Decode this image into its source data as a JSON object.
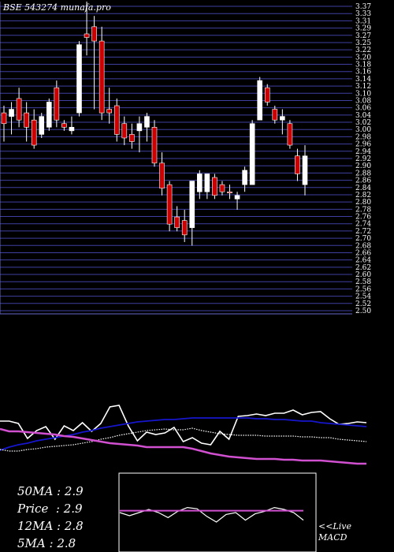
{
  "chart_data": [
    {
      "type": "candlestick",
      "title": "BSE 543274  munafa.pro",
      "y_tick_labels": [
        "3.37",
        "3.33",
        "3.31",
        "3.29",
        "3.27",
        "3.25",
        "3.22",
        "3.20",
        "3.18",
        "3.16",
        "3.14",
        "3.12",
        "3.10",
        "3.08",
        "3.06",
        "3.04",
        "3.02",
        "3.00",
        "2.98",
        "2.96",
        "2.94",
        "2.92",
        "2.90",
        "2.88",
        "2.86",
        "2.84",
        "2.82",
        "2.80",
        "2.78",
        "2.76",
        "2.74",
        "2.72",
        "2.70",
        "2.68",
        "2.66",
        "2.64",
        "2.62",
        "2.60",
        "2.58",
        "2.56",
        "2.54",
        "2.52",
        "2.50"
      ],
      "ylim": [
        2.5,
        3.37
      ],
      "grid": true,
      "candles": [
        {
          "o": 3.06,
          "h": 3.08,
          "l": 2.98,
          "c": 3.03,
          "dir": "down"
        },
        {
          "o": 3.05,
          "h": 3.09,
          "l": 3.0,
          "c": 3.07,
          "dir": "up"
        },
        {
          "o": 3.1,
          "h": 3.13,
          "l": 3.02,
          "c": 3.04,
          "dir": "down"
        },
        {
          "o": 3.06,
          "h": 3.09,
          "l": 2.98,
          "c": 3.02,
          "dir": "down"
        },
        {
          "o": 3.04,
          "h": 3.07,
          "l": 2.96,
          "c": 2.97,
          "dir": "down"
        },
        {
          "o": 3.0,
          "h": 3.06,
          "l": 2.99,
          "c": 3.05,
          "dir": "up"
        },
        {
          "o": 3.02,
          "h": 3.1,
          "l": 3.01,
          "c": 3.09,
          "dir": "up"
        },
        {
          "o": 3.13,
          "h": 3.15,
          "l": 3.02,
          "c": 3.04,
          "dir": "down"
        },
        {
          "o": 3.02,
          "h": 3.04,
          "l": 3.01,
          "c": 3.03,
          "dir": "down"
        },
        {
          "o": 3.01,
          "h": 3.05,
          "l": 3.0,
          "c": 3.02,
          "dir": "up"
        },
        {
          "o": 3.06,
          "h": 3.26,
          "l": 3.05,
          "c": 3.25,
          "dir": "up"
        },
        {
          "o": 3.27,
          "h": 3.37,
          "l": 3.22,
          "c": 3.28,
          "dir": "down"
        },
        {
          "o": 3.3,
          "h": 3.33,
          "l": 3.07,
          "c": 3.26,
          "dir": "down"
        },
        {
          "o": 3.26,
          "h": 3.3,
          "l": 3.04,
          "c": 3.06,
          "dir": "down"
        },
        {
          "o": 3.06,
          "h": 3.13,
          "l": 3.03,
          "c": 3.07,
          "dir": "down"
        },
        {
          "o": 3.08,
          "h": 3.1,
          "l": 2.98,
          "c": 3.0,
          "dir": "down"
        },
        {
          "o": 3.03,
          "h": 3.05,
          "l": 2.97,
          "c": 2.99,
          "dir": "down"
        },
        {
          "o": 3.0,
          "h": 3.03,
          "l": 2.96,
          "c": 2.98,
          "dir": "down"
        },
        {
          "o": 3.01,
          "h": 3.05,
          "l": 2.95,
          "c": 3.03,
          "dir": "up"
        },
        {
          "o": 3.02,
          "h": 3.06,
          "l": 2.98,
          "c": 3.05,
          "dir": "up"
        },
        {
          "o": 3.02,
          "h": 3.04,
          "l": 2.91,
          "c": 2.92,
          "dir": "down"
        },
        {
          "o": 2.92,
          "h": 2.95,
          "l": 2.83,
          "c": 2.85,
          "dir": "down"
        },
        {
          "o": 2.86,
          "h": 2.87,
          "l": 2.73,
          "c": 2.75,
          "dir": "down"
        },
        {
          "o": 2.77,
          "h": 2.8,
          "l": 2.73,
          "c": 2.74,
          "dir": "down"
        },
        {
          "o": 2.76,
          "h": 2.79,
          "l": 2.7,
          "c": 2.72,
          "dir": "down"
        },
        {
          "o": 2.74,
          "h": 2.87,
          "l": 2.69,
          "c": 2.87,
          "dir": "up"
        },
        {
          "o": 2.84,
          "h": 2.9,
          "l": 2.82,
          "c": 2.89,
          "dir": "up"
        },
        {
          "o": 2.84,
          "h": 2.89,
          "l": 2.82,
          "c": 2.89,
          "dir": "up"
        },
        {
          "o": 2.88,
          "h": 2.89,
          "l": 2.82,
          "c": 2.83,
          "dir": "down"
        },
        {
          "o": 2.86,
          "h": 2.87,
          "l": 2.83,
          "c": 2.84,
          "dir": "down"
        },
        {
          "o": 2.84,
          "h": 2.86,
          "l": 2.82,
          "c": 2.84,
          "dir": "down"
        },
        {
          "o": 2.83,
          "h": 2.84,
          "l": 2.79,
          "c": 2.82,
          "dir": "up"
        },
        {
          "o": 2.86,
          "h": 2.91,
          "l": 2.84,
          "c": 2.9,
          "dir": "up"
        },
        {
          "o": 2.86,
          "h": 3.04,
          "l": 2.86,
          "c": 3.03,
          "dir": "up"
        },
        {
          "o": 3.04,
          "h": 3.16,
          "l": 3.04,
          "c": 3.15,
          "dir": "up"
        },
        {
          "o": 3.13,
          "h": 3.14,
          "l": 3.08,
          "c": 3.09,
          "dir": "down"
        },
        {
          "o": 3.07,
          "h": 3.08,
          "l": 3.03,
          "c": 3.04,
          "dir": "down"
        },
        {
          "o": 3.04,
          "h": 3.07,
          "l": 3.0,
          "c": 3.05,
          "dir": "up"
        },
        {
          "o": 3.03,
          "h": 3.04,
          "l": 2.96,
          "c": 2.97,
          "dir": "down"
        },
        {
          "o": 2.94,
          "h": 2.96,
          "l": 2.87,
          "c": 2.89,
          "dir": "down"
        },
        {
          "o": 2.86,
          "h": 2.97,
          "l": 2.83,
          "c": 2.94,
          "dir": "up"
        }
      ],
      "colors": {
        "up": "#ffffff",
        "down": "#cc0000",
        "background": "#000000",
        "grid": "#3f3f9f",
        "axis": "#6666cc"
      }
    },
    {
      "type": "line",
      "series": [
        {
          "values": [
            66,
            66,
            63,
            44,
            54,
            59,
            43,
            60,
            54,
            64,
            53,
            63,
            84,
            86,
            60,
            41,
            52,
            49,
            51,
            58,
            40,
            45,
            38,
            36,
            53,
            43,
            72,
            73,
            75,
            73,
            76,
            76,
            80,
            74,
            77,
            78,
            69,
            62,
            63,
            65,
            64
          ],
          "color": "#ffffff"
        },
        {
          "values": [
            29,
            33,
            36,
            38,
            41,
            43,
            45,
            47,
            49,
            52,
            54,
            57,
            59,
            61,
            63,
            65,
            66,
            67,
            68,
            68,
            69,
            70,
            70,
            70,
            70,
            70,
            70,
            70,
            69,
            69,
            68,
            68,
            67,
            66,
            66,
            64,
            63,
            62,
            61,
            60,
            59
          ],
          "color": "#1616cc"
        },
        {
          "values": [
            30,
            28,
            28,
            30,
            31,
            33,
            34,
            35,
            36,
            38,
            40,
            43,
            45,
            48,
            50,
            52,
            54,
            55,
            56,
            55,
            55,
            57,
            54,
            52,
            50,
            49,
            48,
            48,
            48,
            47,
            47,
            47,
            47,
            46,
            46,
            45,
            45,
            43,
            42,
            41,
            40
          ],
          "color": "#ffffff"
        },
        {
          "values": [
            56,
            53,
            53,
            52,
            51,
            50,
            49,
            47,
            46,
            44,
            42,
            40,
            38,
            37,
            36,
            35,
            33,
            33,
            33,
            33,
            33,
            31,
            28,
            25,
            23,
            21,
            20,
            19,
            18,
            18,
            18,
            17,
            17,
            16,
            16,
            16,
            15,
            14,
            13,
            12,
            12
          ],
          "color": "#d050d0"
        }
      ],
      "ylim": [
        0,
        100
      ]
    },
    {
      "type": "line",
      "series": [
        {
          "values": [
            0,
            -0.5,
            0,
            0.5,
            0,
            -0.8,
            0.2,
            0.8,
            0.6,
            -0.6,
            -1.5,
            -0.3,
            0,
            -1.2,
            -0.2,
            0.2,
            0.8,
            0.5,
            0,
            -1.2
          ],
          "color": "#ffffff"
        },
        {
          "values": [
            0.3,
            0.3,
            0.3,
            0.3,
            0.3,
            0.3,
            0.3,
            0.3,
            0.3,
            0.3,
            0.3,
            0.3,
            0.3,
            0.3,
            0.3,
            0.3,
            0.3,
            0.3,
            0.3,
            0.3
          ],
          "color": "#d050d0"
        }
      ],
      "ylim": [
        -6,
        6
      ]
    }
  ],
  "legend": {
    "ma50": "50MA : 2.9",
    "price": "Price  : 2.9",
    "ma12": "12MA : 2.8",
    "ma5": "5MA : 2.8"
  },
  "macd_label_1": "<<Live",
  "macd_label_2": "MACD"
}
